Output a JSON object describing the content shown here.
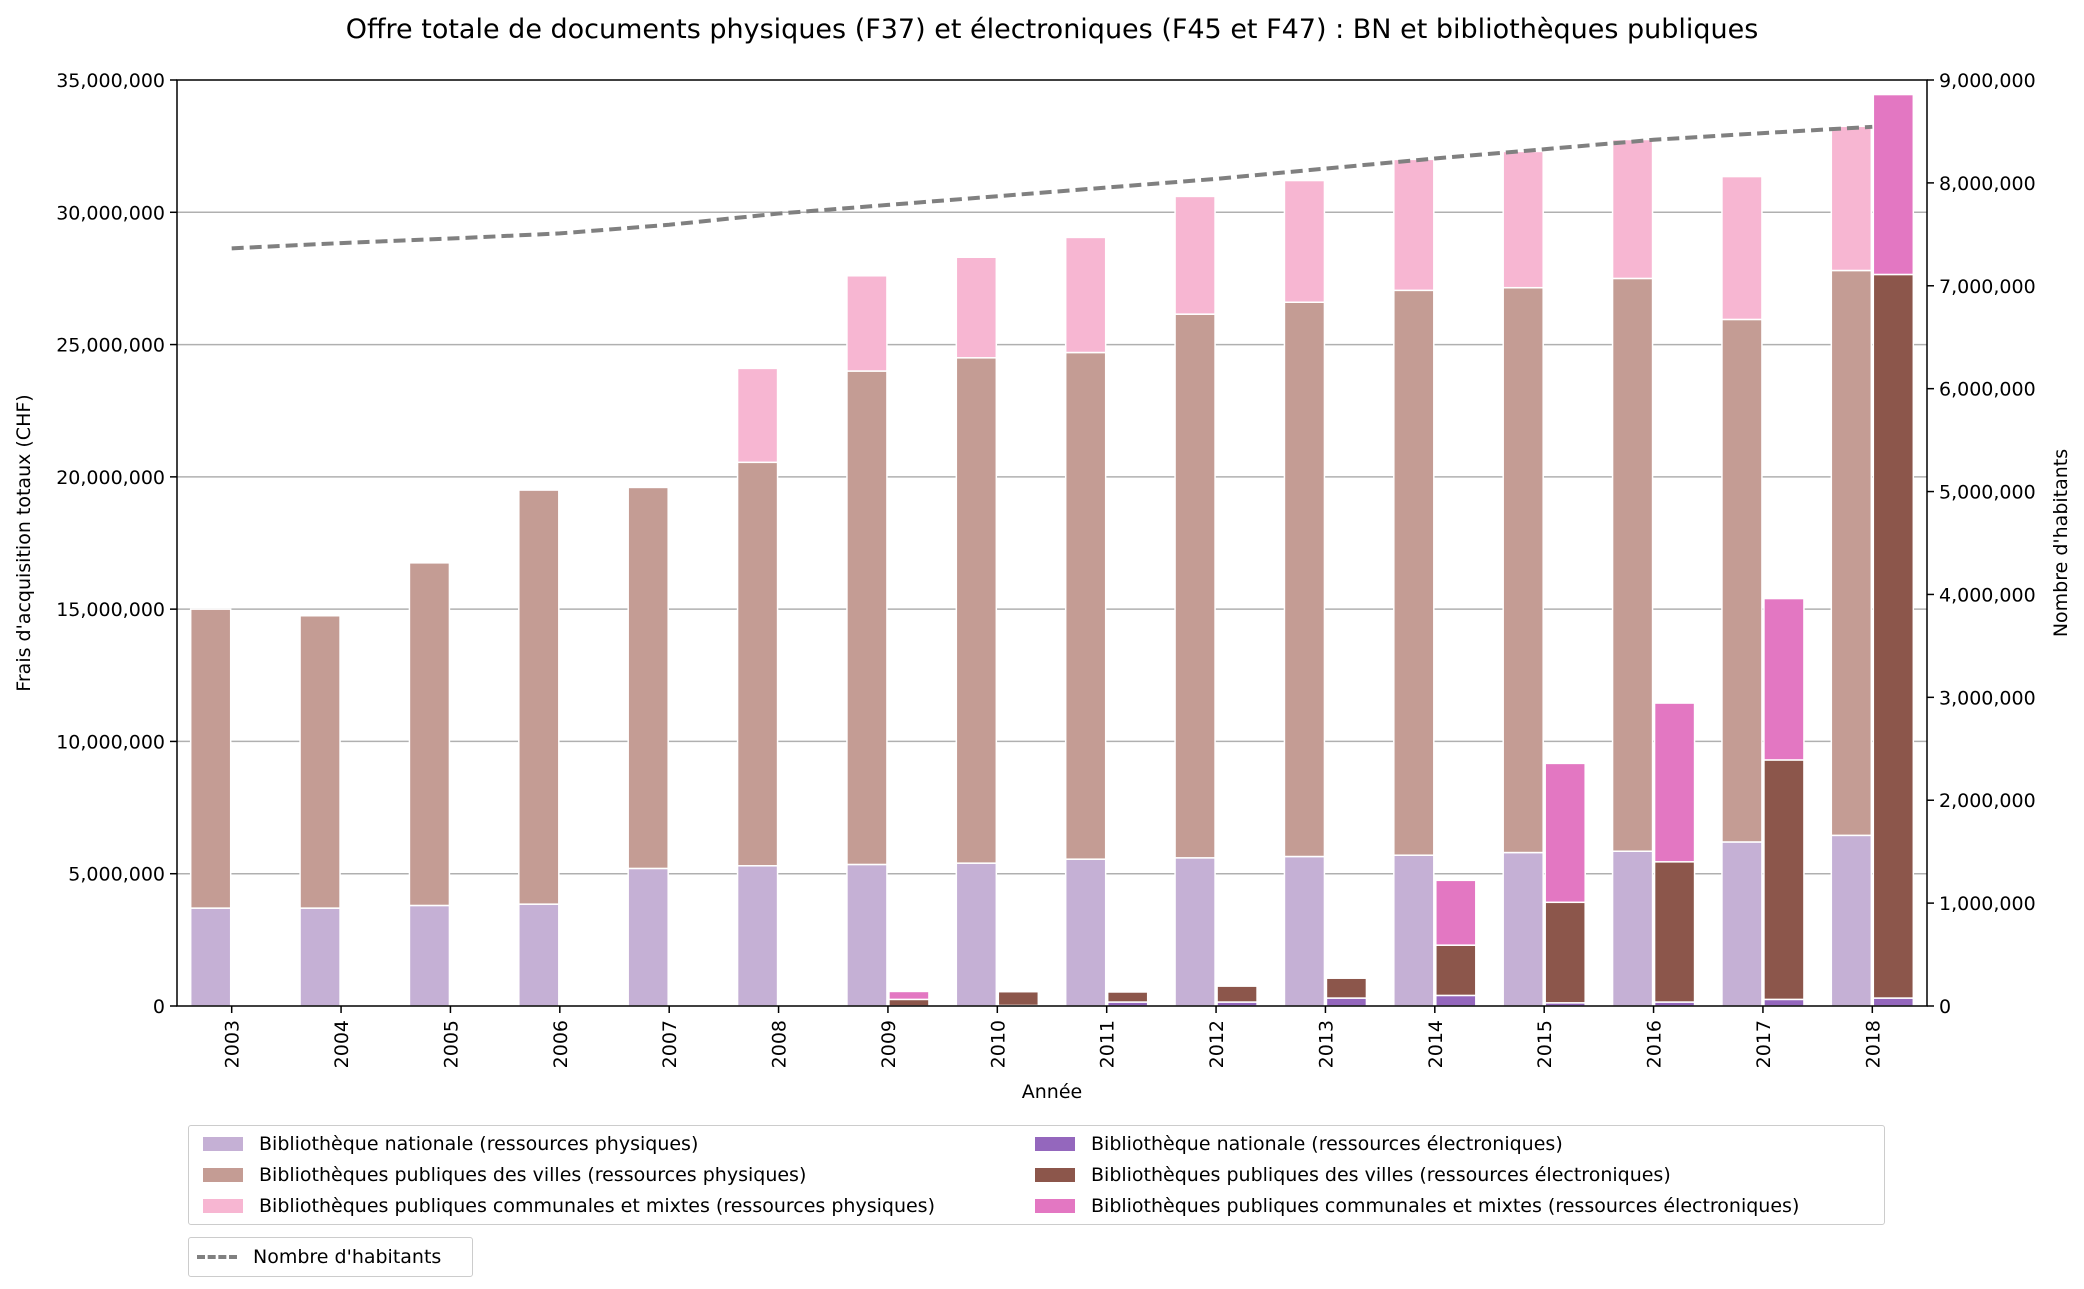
{
  "chart_data": {
    "type": "bar",
    "title": "Offre totale de documents physiques (F37) et électroniques (F45 et F47) : BN et bibliothèques publiques",
    "xlabel": "Année",
    "ylabel": "Frais d'acquisition totaux (CHF)",
    "y2label": "Nombre d'habitants",
    "categories": [
      "2003",
      "2004",
      "2005",
      "2006",
      "2007",
      "2008",
      "2009",
      "2010",
      "2011",
      "2012",
      "2013",
      "2014",
      "2015",
      "2016",
      "2017",
      "2018"
    ],
    "ylim": [
      0,
      35000000
    ],
    "y2lim": [
      0,
      9000000
    ],
    "yticks": [
      0,
      5000000,
      10000000,
      15000000,
      20000000,
      25000000,
      30000000,
      35000000
    ],
    "yticklabels": [
      "0",
      "5,000,000",
      "10,000,000",
      "15,000,000",
      "20,000,000",
      "25,000,000",
      "30,000,000",
      "35,000,000"
    ],
    "y2ticks": [
      0,
      1000000,
      2000000,
      3000000,
      4000000,
      5000000,
      6000000,
      7000000,
      8000000,
      9000000
    ],
    "y2ticklabels": [
      "0",
      "1,000,000",
      "2,000,000",
      "3,000,000",
      "4,000,000",
      "5,000,000",
      "6,000,000",
      "7,000,000",
      "8,000,000",
      "9,000,000"
    ],
    "grid": "horizontal",
    "legend_position": "bottom",
    "stacks": [
      {
        "group": "physical",
        "series": [
          {
            "name": "Bibliothèque nationale (ressources physiques)",
            "color": "#c5b0d5",
            "values": [
              3700000,
              3700000,
              3800000,
              3850000,
              5200000,
              5300000,
              5350000,
              5400000,
              5550000,
              5600000,
              5650000,
              5700000,
              5800000,
              5850000,
              6200000,
              6450000
            ]
          },
          {
            "name": "Bibliothèques publiques des villes (ressources physiques)",
            "color": "#c49c94",
            "values": [
              11300000,
              11050000,
              12950000,
              15650000,
              14400000,
              15250000,
              18650000,
              19100000,
              19150000,
              20550000,
              20950000,
              21350000,
              21350000,
              21650000,
              19750000,
              21350000
            ]
          },
          {
            "name": "Bibliothèques publiques communales et mixtes (ressources physiques)",
            "color": "#f7b6d2",
            "values": [
              0,
              0,
              0,
              0,
              0,
              3550000,
              3600000,
              3800000,
              4350000,
              4450000,
              4600000,
              4950000,
              5150000,
              5250000,
              5400000,
              5450000
            ]
          }
        ]
      },
      {
        "group": "electronic",
        "series": [
          {
            "name": "Bibliothèque nationale (ressources électroniques)",
            "color": "#9467bd",
            "values": [
              0,
              0,
              0,
              0,
              0,
              0,
              0,
              20000,
              150000,
              150000,
              300000,
              400000,
              120000,
              150000,
              250000,
              300000
            ]
          },
          {
            "name": "Bibliothèques publiques des villes (ressources électroniques)",
            "color": "#8c564b",
            "values": [
              0,
              0,
              0,
              0,
              0,
              0,
              250000,
              520000,
              380000,
              600000,
              750000,
              1900000,
              3800000,
              5300000,
              9050000,
              27350000
            ]
          },
          {
            "name": "Bibliothèques publiques communales et mixtes (ressources électroniques)",
            "color": "#e377c2",
            "values": [
              0,
              0,
              0,
              0,
              0,
              0,
              300000,
              0,
              0,
              0,
              0,
              2450000,
              5250000,
              6000000,
              6100000,
              6800000
            ]
          }
        ]
      }
    ],
    "line": {
      "name": "Nombre d'habitants",
      "color": "#808080",
      "style": "dashed",
      "axis": "right",
      "values": [
        7364000,
        7415000,
        7459000,
        7509000,
        7593000,
        7702000,
        7786000,
        7870000,
        7955000,
        8039000,
        8139000,
        8237000,
        8327000,
        8419000,
        8484000,
        8545000
      ]
    }
  }
}
